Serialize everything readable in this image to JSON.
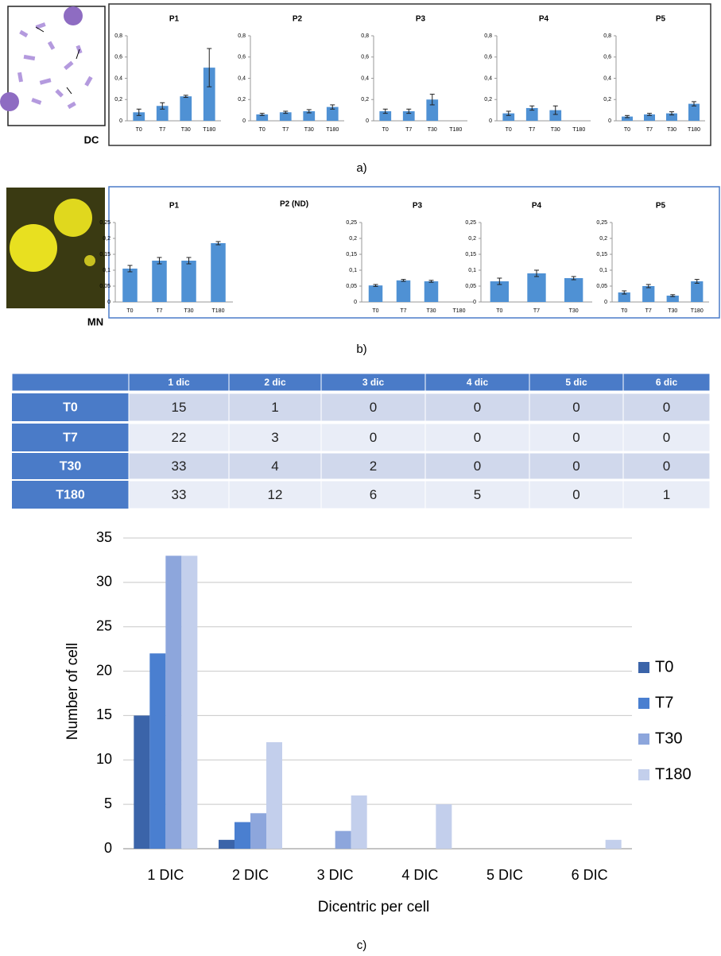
{
  "chart_data": [
    {
      "type": "bar",
      "title": "P1",
      "categories": [
        "T0",
        "T7",
        "T30",
        "T180"
      ],
      "values": [
        0.08,
        0.14,
        0.23,
        0.5
      ],
      "errors": [
        0.03,
        0.03,
        0.01,
        0.18
      ],
      "color": "#4f91d4",
      "ylim": [
        0,
        0.8
      ],
      "yticks": [
        0,
        {
          "value": 0.2,
          "label": "0,2"
        },
        {
          "value": 0.4,
          "label": "0,4"
        },
        {
          "value": 0.6,
          "label": "0,6"
        },
        {
          "value": 0.8,
          "label": "0,8"
        }
      ]
    },
    {
      "type": "bar",
      "title": "P2",
      "categories": [
        "T0",
        "T7",
        "T30",
        "T180"
      ],
      "values": [
        0.06,
        0.08,
        0.09,
        0.13
      ],
      "errors": [
        0.01,
        0.01,
        0.015,
        0.02
      ],
      "color": "#4f91d4",
      "ylim": [
        0,
        0.8
      ],
      "yticks": [
        0,
        {
          "value": 0.2,
          "label": "0,2"
        },
        {
          "value": 0.4,
          "label": "0,4"
        },
        {
          "value": 0.6,
          "label": "0,6"
        },
        {
          "value": 0.8,
          "label": "0,8"
        }
      ]
    },
    {
      "type": "bar",
      "title": "P3",
      "categories": [
        "T0",
        "T7",
        "T30",
        "T180"
      ],
      "values": [
        0.09,
        0.09,
        0.2,
        null
      ],
      "errors": [
        0.02,
        0.02,
        0.05,
        null
      ],
      "color": "#4f91d4",
      "ylim": [
        0,
        0.8
      ],
      "yticks": [
        0,
        {
          "value": 0.2,
          "label": "0,2"
        },
        {
          "value": 0.4,
          "label": "0,4"
        },
        {
          "value": 0.6,
          "label": "0,6"
        },
        {
          "value": 0.8,
          "label": "0,8"
        }
      ]
    },
    {
      "type": "bar",
      "title": "P4",
      "categories": [
        "T0",
        "T7",
        "T30",
        "T180"
      ],
      "values": [
        0.07,
        0.12,
        0.1,
        null
      ],
      "errors": [
        0.02,
        0.02,
        0.04,
        null
      ],
      "color": "#4f91d4",
      "ylim": [
        0,
        0.8
      ],
      "yticks": [
        0,
        {
          "value": 0.2,
          "label": "0,2"
        },
        {
          "value": 0.4,
          "label": "0,4"
        },
        {
          "value": 0.6,
          "label": "0,6"
        },
        {
          "value": 0.8,
          "label": "0,8"
        }
      ]
    },
    {
      "type": "bar",
      "title": "P5",
      "categories": [
        "T0",
        "T7",
        "T30",
        "T180"
      ],
      "values": [
        0.04,
        0.06,
        0.07,
        0.16
      ],
      "errors": [
        0.01,
        0.01,
        0.015,
        0.02
      ],
      "color": "#4f91d4",
      "ylim": [
        0,
        0.8
      ],
      "yticks": [
        0,
        {
          "value": 0.2,
          "label": "0,2"
        },
        {
          "value": 0.4,
          "label": "0,4"
        },
        {
          "value": 0.6,
          "label": "0,6"
        },
        {
          "value": 0.8,
          "label": "0,8"
        }
      ]
    },
    {
      "type": "bar",
      "title": "P1",
      "categories": [
        "T0",
        "T7",
        "T30",
        "T180"
      ],
      "values": [
        0.105,
        0.13,
        0.13,
        0.185
      ],
      "errors": [
        0.01,
        0.01,
        0.01,
        0.005
      ],
      "color": "#4f91d4",
      "ylim": [
        0,
        0.25
      ],
      "yticks": [
        0,
        {
          "value": 0.05,
          "label": "0,05"
        },
        {
          "value": 0.1,
          "label": "0,1"
        },
        {
          "value": 0.15,
          "label": "0,15"
        },
        {
          "value": 0.2,
          "label": "0,2"
        },
        {
          "value": 0.25,
          "label": "0,25"
        }
      ]
    },
    {
      "type": "bar",
      "title": "P3",
      "categories": [
        "T0",
        "T7",
        "T30",
        "T180"
      ],
      "values": [
        0.052,
        0.068,
        0.065,
        null
      ],
      "errors": [
        0.003,
        0.003,
        0.003,
        null
      ],
      "color": "#4f91d4",
      "ylim": [
        0,
        0.25
      ],
      "yticks": [
        0,
        {
          "value": 0.05,
          "label": "0,05"
        },
        {
          "value": 0.1,
          "label": "0,1"
        },
        {
          "value": 0.15,
          "label": "0,15"
        },
        {
          "value": 0.2,
          "label": "0,2"
        },
        {
          "value": 0.25,
          "label": "0,25"
        }
      ]
    },
    {
      "type": "bar",
      "title": "P4",
      "categories": [
        "T0",
        "T7",
        "T30"
      ],
      "values": [
        0.065,
        0.09,
        0.075
      ],
      "errors": [
        0.01,
        0.01,
        0.005
      ],
      "color": "#4f91d4",
      "ylim": [
        0,
        0.25
      ],
      "yticks": [
        0,
        {
          "value": 0.05,
          "label": "0,05"
        },
        {
          "value": 0.1,
          "label": "0,1"
        },
        {
          "value": 0.15,
          "label": "0,15"
        },
        {
          "value": 0.2,
          "label": "0,2"
        },
        {
          "value": 0.25,
          "label": "0,25"
        }
      ]
    },
    {
      "type": "bar",
      "title": "P5",
      "categories": [
        "T0",
        "T7",
        "T30",
        "T180"
      ],
      "values": [
        0.03,
        0.05,
        0.02,
        0.065
      ],
      "errors": [
        0.005,
        0.005,
        0.003,
        0.006
      ],
      "color": "#4f91d4",
      "ylim": [
        0,
        0.25
      ],
      "yticks": [
        0,
        {
          "value": 0.05,
          "label": "0,05"
        },
        {
          "value": 0.1,
          "label": "0,1"
        },
        {
          "value": 0.15,
          "label": "0,15"
        },
        {
          "value": 0.2,
          "label": "0,2"
        },
        {
          "value": 0.25,
          "label": "0,25"
        }
      ]
    },
    {
      "type": "grouped-bar",
      "x_label": "Dicentric per cell",
      "y_label": "Number of cell",
      "categories": [
        "1 DIC",
        "2 DIC",
        "3 DIC",
        "4 DIC",
        "5 DIC",
        "6 DIC"
      ],
      "series": [
        {
          "name": "T0",
          "color": "#3b64a9",
          "values": [
            15,
            1,
            0,
            0,
            0,
            0
          ]
        },
        {
          "name": "T7",
          "color": "#4a7fd0",
          "values": [
            22,
            3,
            0,
            0,
            0,
            0
          ]
        },
        {
          "name": "T30",
          "color": "#8da6dc",
          "values": [
            33,
            4,
            2,
            0,
            0,
            0
          ]
        },
        {
          "name": "T180",
          "color": "#c3cfec",
          "values": [
            33,
            12,
            6,
            5,
            0,
            1
          ]
        }
      ],
      "ylim": [
        0,
        35
      ],
      "yticks": [
        0,
        5,
        10,
        15,
        20,
        25,
        30,
        35
      ],
      "grid": true,
      "legend": "right"
    }
  ],
  "table": {
    "columns": [
      "1 dic",
      "2 dic",
      "3 dic",
      "4 dic",
      "5 dic",
      "6 dic"
    ],
    "rows": [
      {
        "label": "T0",
        "cells": [
          "15",
          "1",
          "0",
          "0",
          "0",
          "0"
        ]
      },
      {
        "label": "T7",
        "cells": [
          "22",
          "3",
          "0",
          "0",
          "0",
          "0"
        ]
      },
      {
        "label": "T30",
        "cells": [
          "33",
          "4",
          "2",
          "0",
          "0",
          "0"
        ]
      },
      {
        "label": "T180",
        "cells": [
          "33",
          "12",
          "6",
          "5",
          "0",
          "1"
        ]
      }
    ]
  },
  "labels": {
    "dc": "DC",
    "mn": "MN",
    "p2_nd": "P2 (ND)",
    "a": "a)",
    "b": "b)",
    "c": "c)"
  }
}
